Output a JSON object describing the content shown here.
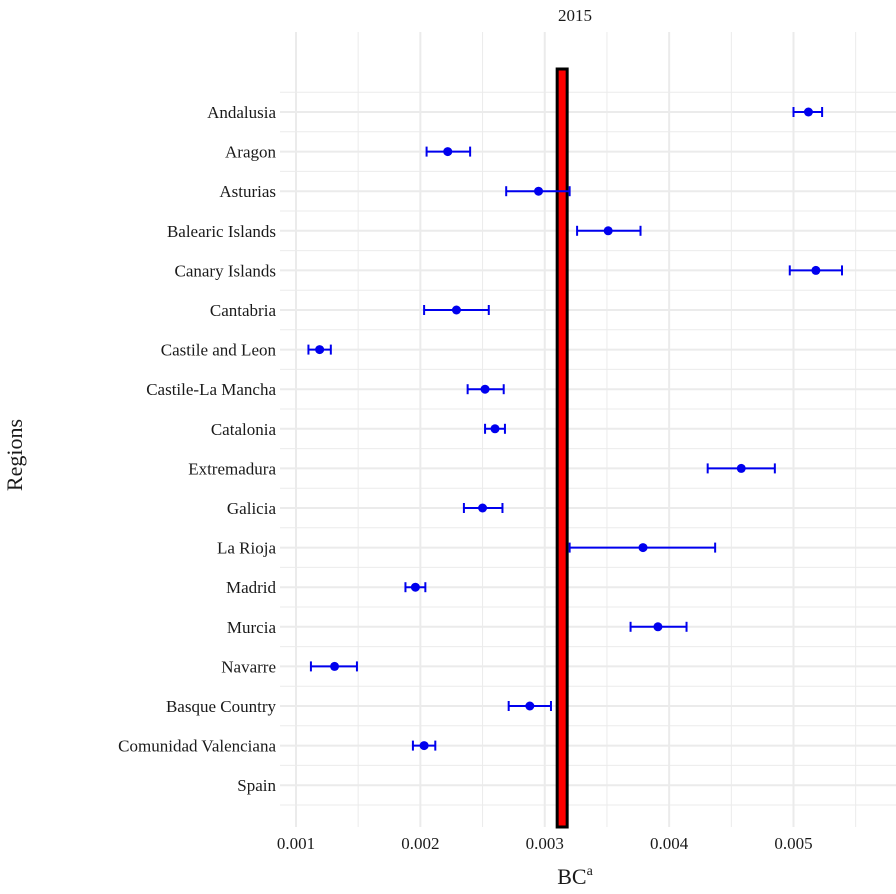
{
  "chart_data": {
    "type": "errorbar",
    "title": "2015",
    "xlabel": "BC",
    "xlabel_superscript": "a",
    "ylabel": "Regions",
    "xlim": [
      0.0009,
      0.00545
    ],
    "x_ticks": [
      0.001,
      0.002,
      0.003,
      0.004,
      0.005
    ],
    "x_tick_labels": [
      "0.001",
      "0.002",
      "0.003",
      "0.004",
      "0.005"
    ],
    "grid": true,
    "reference_value": 0.00314,
    "colors": {
      "points": "#0000ee",
      "reference_fill": "#ff0000",
      "reference_border": "#000000",
      "grid": "#ebebeb"
    },
    "categories": [
      "Andalusia",
      "Aragon",
      "Asturias",
      "Balearic Islands",
      "Canary Islands",
      "Cantabria",
      "Castile and Leon",
      "Castile-La Mancha",
      "Catalonia",
      "Extremadura",
      "Galicia",
      "La Rioja",
      "Madrid",
      "Murcia",
      "Navarre",
      "Basque Country",
      "Comunidad Valenciana",
      "Spain"
    ],
    "points": [
      {
        "region": "Andalusia",
        "value": 0.00512,
        "low": 0.005,
        "high": 0.00523
      },
      {
        "region": "Aragon",
        "value": 0.00222,
        "low": 0.00205,
        "high": 0.0024
      },
      {
        "region": "Asturias",
        "value": 0.00295,
        "low": 0.00269,
        "high": 0.0032
      },
      {
        "region": "Balearic Islands",
        "value": 0.00351,
        "low": 0.00326,
        "high": 0.00377
      },
      {
        "region": "Canary Islands",
        "value": 0.00518,
        "low": 0.00497,
        "high": 0.00539
      },
      {
        "region": "Cantabria",
        "value": 0.00229,
        "low": 0.00203,
        "high": 0.00255
      },
      {
        "region": "Castile and Leon",
        "value": 0.00119,
        "low": 0.0011,
        "high": 0.00128
      },
      {
        "region": "Castile-La Mancha",
        "value": 0.00252,
        "low": 0.00238,
        "high": 0.00267
      },
      {
        "region": "Catalonia",
        "value": 0.0026,
        "low": 0.00252,
        "high": 0.00268
      },
      {
        "region": "Extremadura",
        "value": 0.00458,
        "low": 0.00431,
        "high": 0.00485
      },
      {
        "region": "Galicia",
        "value": 0.0025,
        "low": 0.00235,
        "high": 0.00266
      },
      {
        "region": "La Rioja",
        "value": 0.00379,
        "low": 0.0032,
        "high": 0.00437
      },
      {
        "region": "Madrid",
        "value": 0.00196,
        "low": 0.00188,
        "high": 0.00204
      },
      {
        "region": "Murcia",
        "value": 0.00391,
        "low": 0.00369,
        "high": 0.00414
      },
      {
        "region": "Navarre",
        "value": 0.00131,
        "low": 0.00112,
        "high": 0.00149
      },
      {
        "region": "Basque Country",
        "value": 0.00288,
        "low": 0.00271,
        "high": 0.00305
      },
      {
        "region": "Comunidad Valenciana",
        "value": 0.00203,
        "low": 0.00194,
        "high": 0.00212
      },
      {
        "region": "Spain",
        "value": null,
        "low": null,
        "high": null
      }
    ]
  }
}
